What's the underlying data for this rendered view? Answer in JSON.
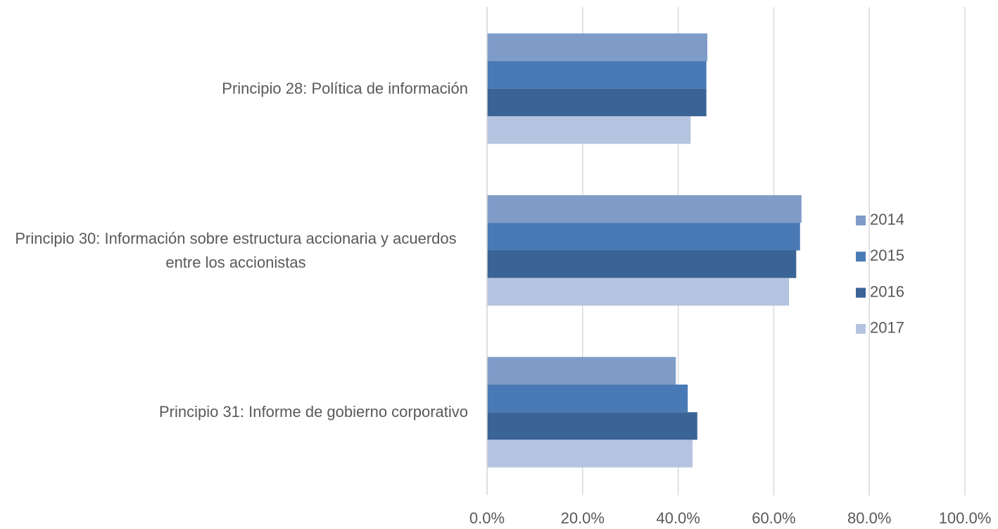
{
  "chart_data": {
    "type": "barh",
    "categories": [
      "Principio 28: Política de información",
      "Principio 30: Información sobre estructura accionaria y acuerdos entre los accionistas",
      "Principio 31: Informe de gobierno corporativo"
    ],
    "series": [
      {
        "name": "2014",
        "color": "#7f9cc8",
        "values": [
          46.1,
          65.8,
          39.5
        ]
      },
      {
        "name": "2015",
        "color": "#4a7ab5",
        "values": [
          45.9,
          65.5,
          42.0
        ]
      },
      {
        "name": "2016",
        "color": "#3b6496",
        "values": [
          45.9,
          64.7,
          44.0
        ]
      },
      {
        "name": "2017",
        "color": "#b4c4e0",
        "values": [
          42.6,
          63.2,
          43.0
        ]
      }
    ],
    "xlim": [
      0,
      100
    ],
    "xticks": [
      {
        "value": 0,
        "label": "0.0%"
      },
      {
        "value": 20,
        "label": "20.0%"
      },
      {
        "value": 40,
        "label": "40.0%"
      },
      {
        "value": 60,
        "label": "60.0%"
      },
      {
        "value": 80,
        "label": "80.0%"
      },
      {
        "value": 100,
        "label": "100.0%"
      }
    ],
    "grid": true,
    "legend": "right"
  }
}
